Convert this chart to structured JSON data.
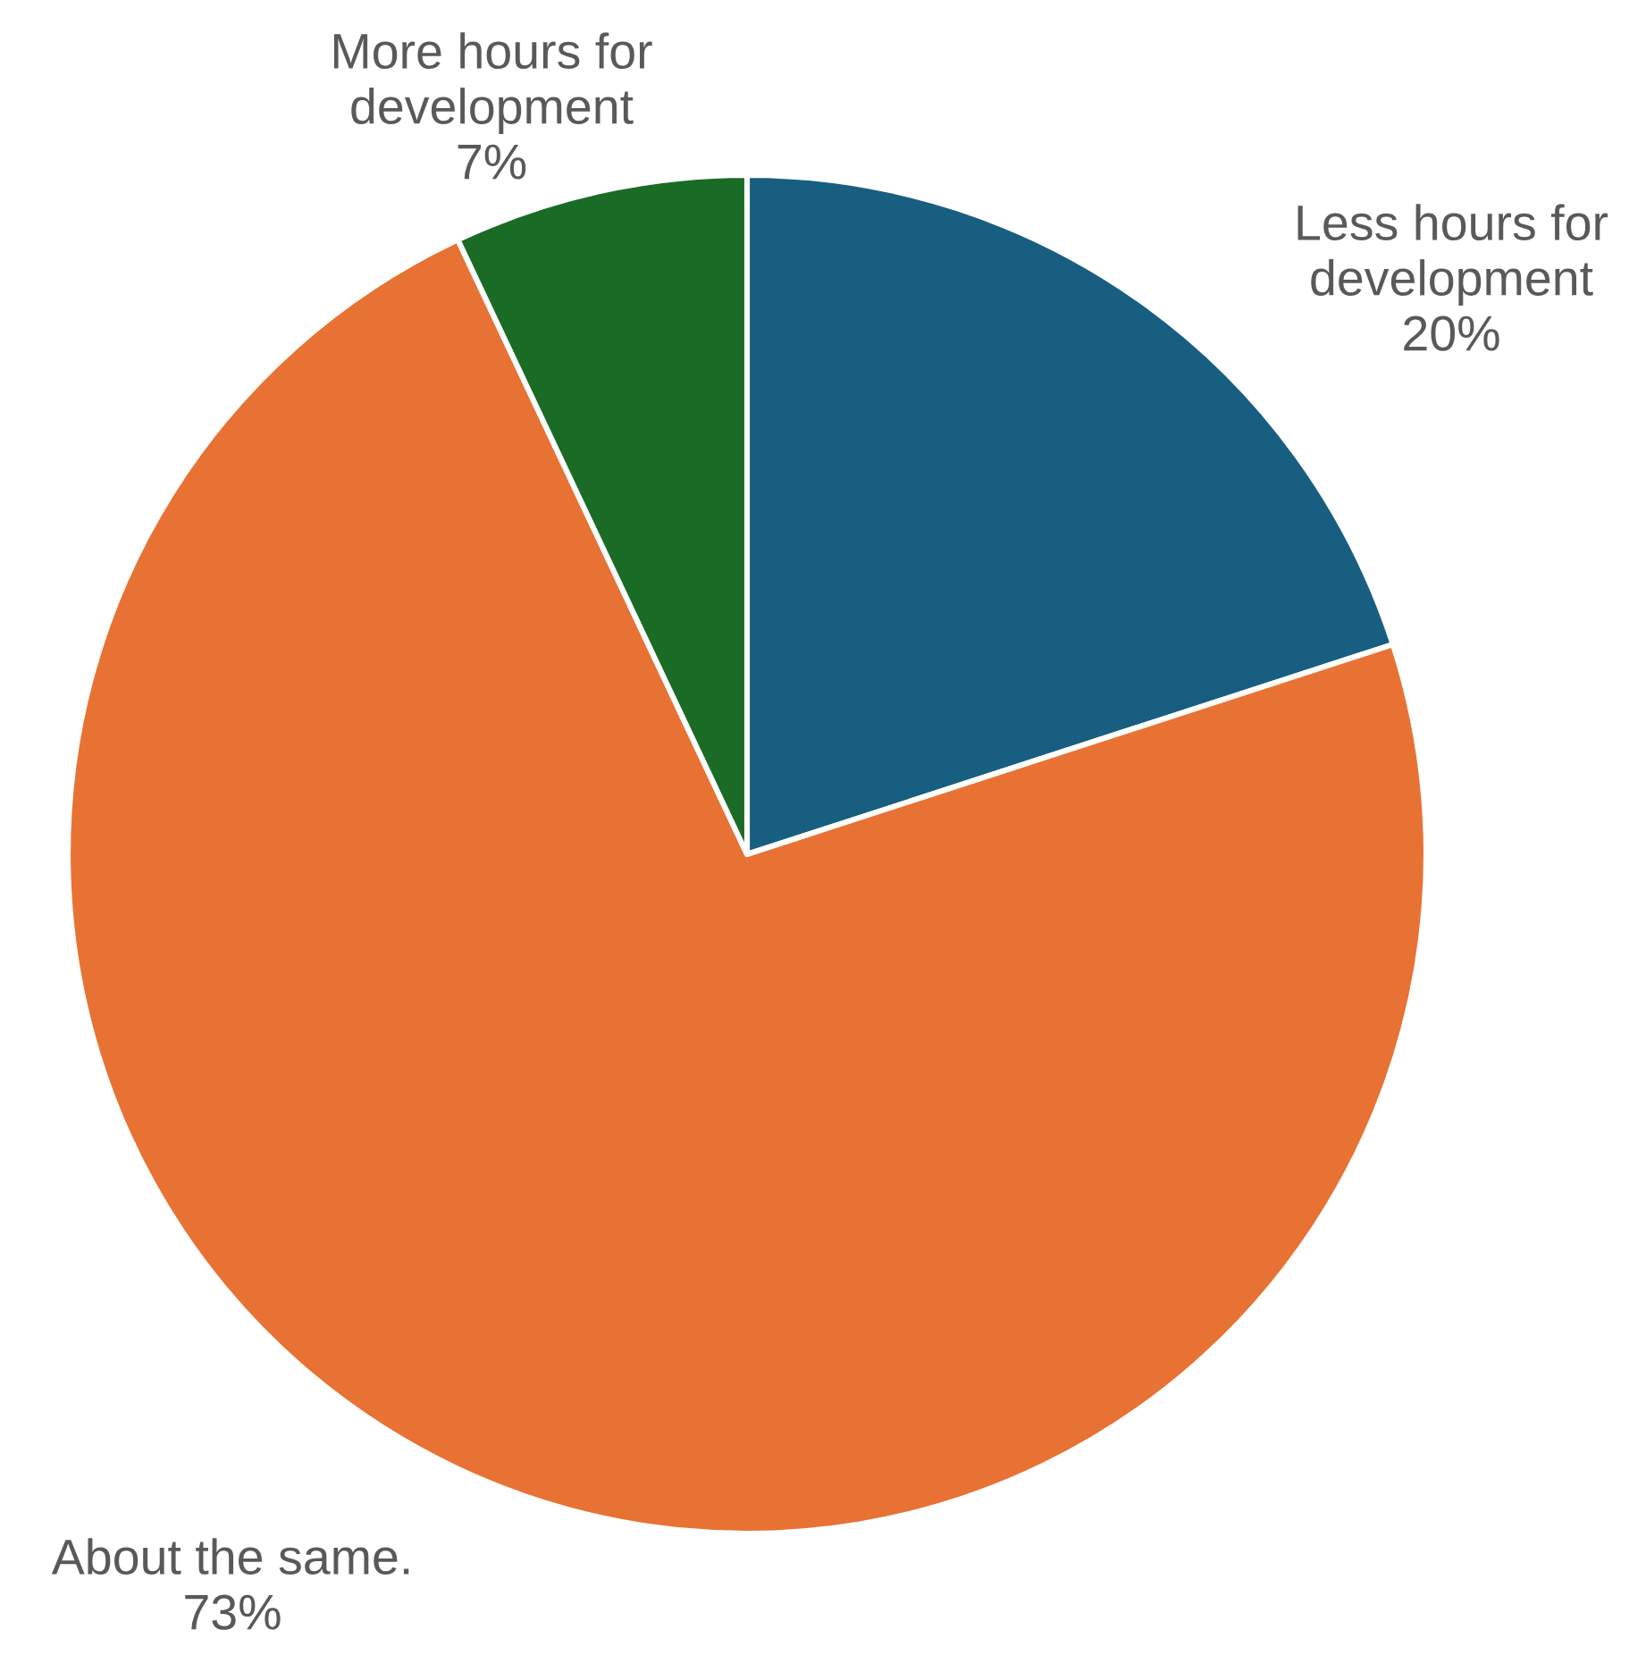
{
  "chart_data": {
    "type": "pie",
    "categories": [
      "Less hours for\ndevelopment",
      "About the same.",
      "More hours for\ndevelopment"
    ],
    "values": [
      20,
      73,
      7
    ],
    "colors": [
      "#185e80",
      "#e87234",
      "#1a6b26"
    ],
    "value_labels": [
      "20%",
      "73%",
      "7%"
    ],
    "legend": false
  }
}
